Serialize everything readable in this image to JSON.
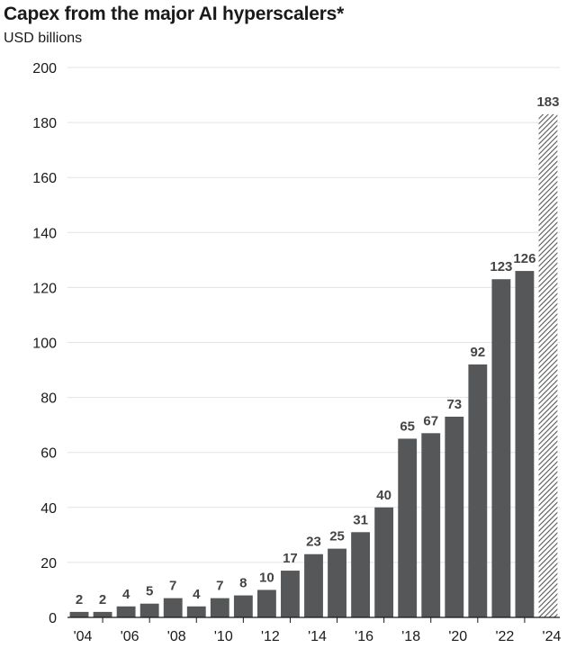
{
  "title": "Capex from the major AI hyperscalers*",
  "subtitle": "USD billions",
  "colors": {
    "bar": "#555758",
    "grid": "#e3e3e3",
    "axis": "#1a1a1a",
    "label": "#444444"
  },
  "chart_data": {
    "type": "bar",
    "categories": [
      "'04",
      "'05",
      "'06",
      "'07",
      "'08",
      "'09",
      "'10",
      "'11",
      "'12",
      "'13",
      "'14",
      "'15",
      "'16",
      "'17",
      "'18",
      "'19",
      "'20",
      "'21",
      "'22",
      "'23",
      "'24"
    ],
    "tick_labels": [
      "'04",
      "'06",
      "'08",
      "'10",
      "'12",
      "'14",
      "'16",
      "'18",
      "'20",
      "'22",
      "'24"
    ],
    "values": [
      2,
      2,
      4,
      5,
      7,
      4,
      7,
      8,
      10,
      17,
      23,
      25,
      31,
      40,
      65,
      67,
      73,
      92,
      123,
      126,
      183
    ],
    "data_labels": [
      "2",
      "2",
      "4",
      "5",
      "7",
      "4",
      "7",
      "8",
      "10",
      "17",
      "23",
      "25",
      "31",
      "40",
      "65",
      "67",
      "73",
      "92",
      "123",
      "126",
      "183"
    ],
    "hatched": [
      false,
      false,
      false,
      false,
      false,
      false,
      false,
      false,
      false,
      false,
      false,
      false,
      false,
      false,
      false,
      false,
      false,
      false,
      false,
      false,
      true
    ],
    "ylim": [
      0,
      200
    ],
    "yticks": [
      0,
      20,
      40,
      60,
      80,
      100,
      120,
      140,
      160,
      180,
      200
    ],
    "grid": true
  }
}
